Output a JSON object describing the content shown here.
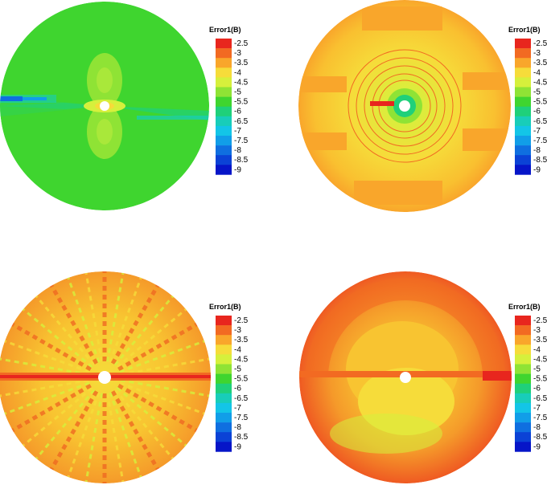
{
  "chart_data": [
    {
      "type": "heatmap",
      "panel": "top-left",
      "colorbar": {
        "title": "Error1(B)",
        "levels": [
          -2.5,
          -3,
          -3.5,
          -4,
          -4.5,
          -5,
          -5.5,
          -6,
          -6.5,
          -7,
          -7.5,
          -8,
          -8.5,
          -9
        ],
        "tick_labels": [
          "-2.5",
          "-3",
          "-3.5",
          "-4",
          "-4.5",
          "-5",
          "-5.5",
          "-6",
          "-6.5",
          "-7",
          "-7.5",
          "-8",
          "-8.5",
          "-9"
        ]
      },
      "dominant_level": -5.5,
      "pattern": "smooth lobes"
    },
    {
      "type": "heatmap",
      "panel": "top-right",
      "colorbar": {
        "title": "Error1(B)",
        "levels": [
          -2.5,
          -3,
          -3.5,
          -4,
          -4.5,
          -5,
          -5.5,
          -6,
          -6.5,
          -7,
          -7.5,
          -8,
          -8.5,
          -9
        ],
        "tick_labels": [
          "-2.5",
          "-3",
          "-3.5",
          "-4",
          "-4.5",
          "-5",
          "-5.5",
          "-6",
          "-6.5",
          "-7",
          "-7.5",
          "-8",
          "-8.5",
          "-9"
        ]
      },
      "dominant_level": -4,
      "pattern": "concentric rings"
    },
    {
      "type": "heatmap",
      "panel": "bottom-left",
      "colorbar": {
        "title": "Error1(B)",
        "levels": [
          -2.5,
          -3,
          -3.5,
          -4,
          -4.5,
          -5,
          -5.5,
          -6,
          -6.5,
          -7,
          -7.5,
          -8,
          -8.5,
          -9
        ],
        "tick_labels": [
          "-2.5",
          "-3",
          "-3.5",
          "-4",
          "-4.5",
          "-5",
          "-5.5",
          "-6",
          "-6.5",
          "-7",
          "-7.5",
          "-8",
          "-8.5",
          "-9"
        ]
      },
      "dominant_level": -3.5,
      "pattern": "radial streaks"
    },
    {
      "type": "heatmap",
      "panel": "bottom-right",
      "colorbar": {
        "title": "Error1(B)",
        "levels": [
          -2.5,
          -3,
          -3.5,
          -4,
          -4.5,
          -5,
          -5.5,
          -6,
          -6.5,
          -7,
          -7.5,
          -8,
          -8.5,
          -9
        ],
        "tick_labels": [
          "-2.5",
          "-3",
          "-3.5",
          "-4",
          "-4.5",
          "-5",
          "-5.5",
          "-6",
          "-6.5",
          "-7",
          "-7.5",
          "-8",
          "-8.5",
          "-9"
        ]
      },
      "dominant_level": -3,
      "pattern": "outer rim high"
    }
  ],
  "palette": {
    "-2.5": "#e8261e",
    "-3": "#f26a22",
    "-3.5": "#f9a62b",
    "-4": "#f6dc3a",
    "-4.5": "#d6f03c",
    "-5": "#8fe335",
    "-5.5": "#3fd52f",
    "-6": "#1fd07a",
    "-6.5": "#18cdb9",
    "-7": "#13c5e7",
    "-7.5": "#119ee8",
    "-8": "#0f6fe0",
    "-8.5": "#0b42d6",
    "-9": "#0615c8"
  }
}
